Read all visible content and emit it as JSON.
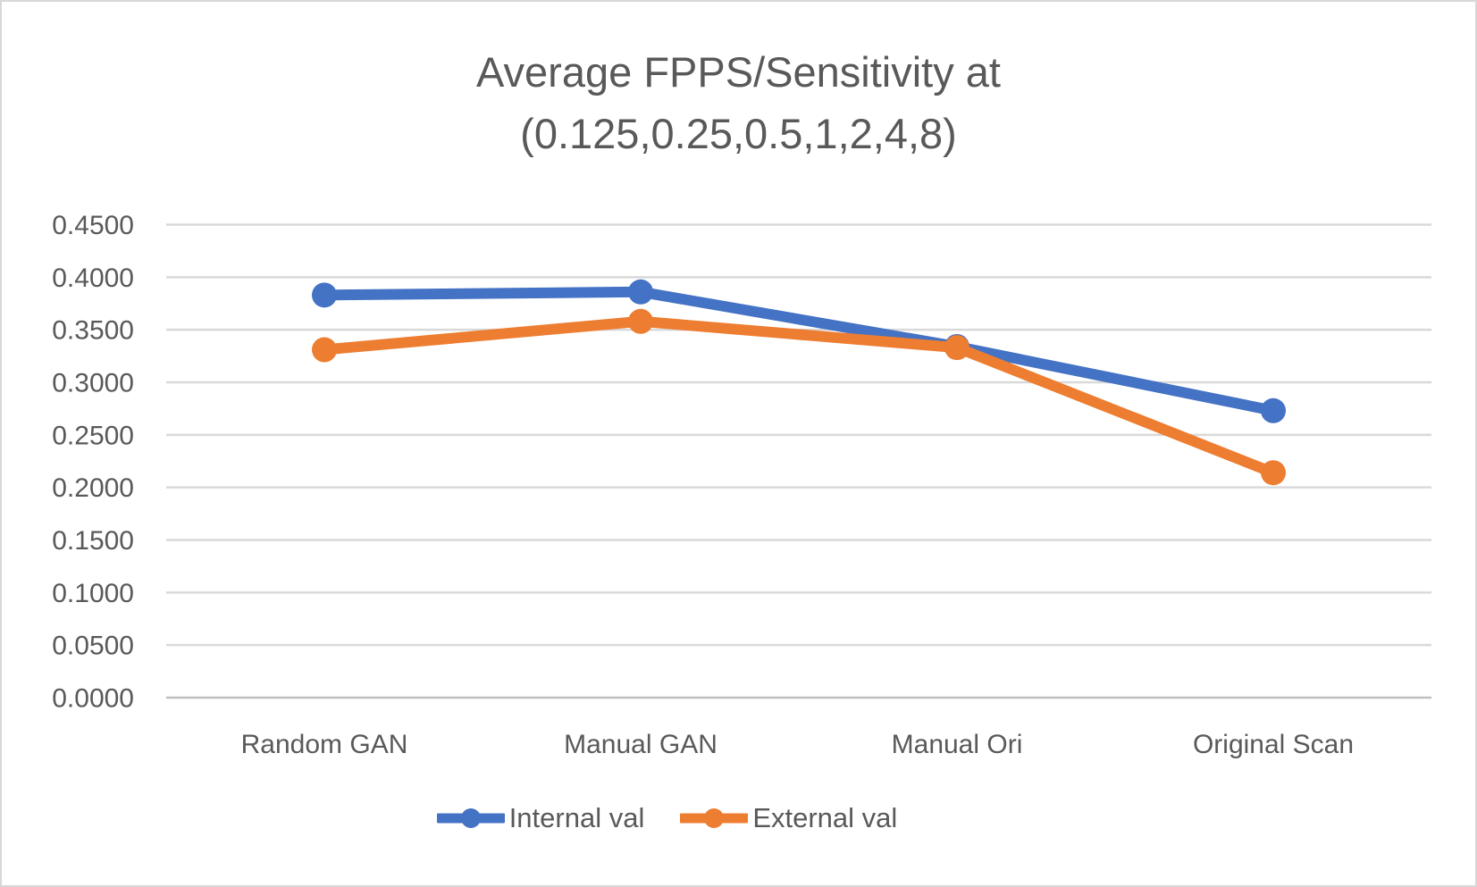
{
  "chart_data": {
    "type": "line",
    "title": "Average FPPS/Sensitivity at (0.125,0.25,0.5,1,2,4,8)",
    "title_lines": [
      "Average FPPS/Sensitivity at",
      "(0.125,0.25,0.5,1,2,4,8)"
    ],
    "categories": [
      "Random GAN",
      "Manual GAN",
      "Manual Ori",
      "Original Scan"
    ],
    "series": [
      {
        "name": "Internal val",
        "color": "#4472C4",
        "values": [
          0.383,
          0.386,
          0.334,
          0.273
        ]
      },
      {
        "name": "External val",
        "color": "#ED7D31",
        "values": [
          0.331,
          0.358,
          0.333,
          0.214
        ]
      }
    ],
    "y_axis": {
      "min": 0.0,
      "max": 0.45,
      "step": 0.05,
      "tick_labels": [
        "0.4500",
        "0.4000",
        "0.3500",
        "0.3000",
        "0.2500",
        "0.2000",
        "0.1500",
        "0.1000",
        "0.0500",
        "0.0000"
      ]
    },
    "x_axis": {
      "label": ""
    },
    "legend_position": "bottom",
    "grid": true,
    "colors": {
      "text": "#595959",
      "gridline": "#D9D9D9",
      "axis_line": "#BFBFBF",
      "background": "#FFFFFF",
      "frame_border": "#D8D8D8"
    }
  }
}
